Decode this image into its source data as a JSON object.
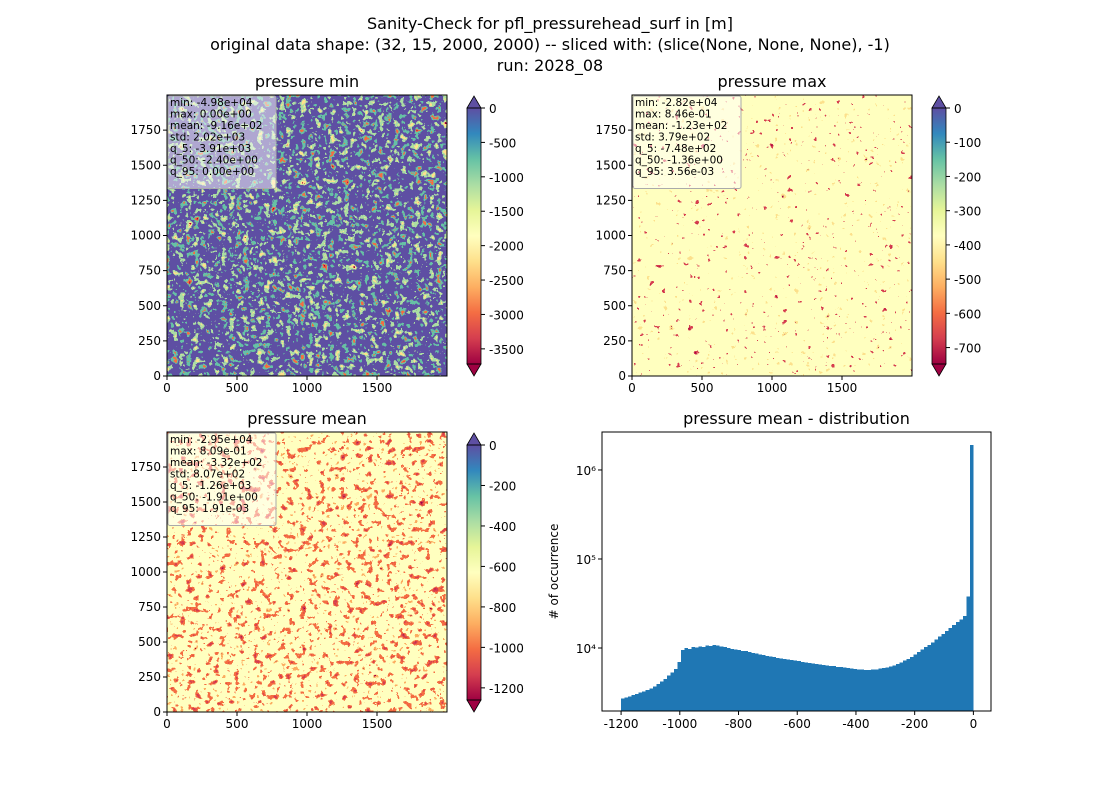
{
  "suptitle": [
    "Sanity-Check for pfl_pressurehead_surf in [m]",
    "original data shape: (32, 15, 2000, 2000) -- sliced with: (slice(None, None, None), -1)",
    "run: 2028_08"
  ],
  "chart_data": [
    {
      "type": "heatmap",
      "title": "pressure min",
      "annotations": [
        "min: -4.98e+04",
        "max: 0.00e+00",
        "mean: -9.16e+02",
        "std: 2.02e+03",
        "q_5: -3.91e+03",
        "q_50: -2.40e+00",
        "q_95: 0.00e+00"
      ],
      "xlim": [
        0,
        2000
      ],
      "ylim": [
        0,
        2000
      ],
      "xticks": [
        0,
        500,
        1000,
        1500
      ],
      "yticks": [
        0,
        250,
        500,
        750,
        1000,
        1250,
        1500,
        1750
      ],
      "colorbar_lim": [
        -3720,
        0
      ],
      "colorbar_ticks": [
        0,
        -500,
        -1000,
        -1500,
        -2000,
        -2500,
        -3000,
        -3500
      ],
      "colormap": [
        "#9e0142",
        "#d53e4f",
        "#f46d43",
        "#fdae61",
        "#fee08b",
        "#ffffbf",
        "#e6f598",
        "#abdda4",
        "#66c2a5",
        "#3288bd",
        "#5e4fa2"
      ]
    },
    {
      "type": "heatmap",
      "title": "pressure max",
      "annotations": [
        "min: -2.82e+04",
        "max: 8.46e-01",
        "mean: -1.23e+02",
        "std: 3.79e+02",
        "q_5: -7.48e+02",
        "q_50: -1.36e+00",
        "q_95: 3.56e-03"
      ],
      "xlim": [
        0,
        2000
      ],
      "ylim": [
        0,
        2000
      ],
      "xticks": [
        0,
        500,
        1000,
        1500
      ],
      "yticks": [
        0,
        250,
        500,
        750,
        1000,
        1250,
        1500,
        1750
      ],
      "colorbar_lim": [
        -748,
        0
      ],
      "colorbar_ticks": [
        0,
        -100,
        -200,
        -300,
        -400,
        -500,
        -600,
        -700
      ],
      "colormap": [
        "#9e0142",
        "#d53e4f",
        "#f46d43",
        "#fdae61",
        "#fee08b",
        "#ffffbf",
        "#e6f598",
        "#abdda4",
        "#66c2a5",
        "#3288bd",
        "#5e4fa2"
      ]
    },
    {
      "type": "heatmap",
      "title": "pressure mean",
      "annotations": [
        "min: -2.95e+04",
        "max: 8.09e-01",
        "mean: -3.32e+02",
        "std: 8.07e+02",
        "q_5: -1.26e+03",
        "q_50: -1.91e+00",
        "q_95: 1.91e-03"
      ],
      "xlim": [
        0,
        2000
      ],
      "ylim": [
        0,
        2000
      ],
      "xticks": [
        0,
        500,
        1000,
        1500
      ],
      "yticks": [
        0,
        250,
        500,
        750,
        1000,
        1250,
        1500,
        1750
      ],
      "colorbar_lim": [
        -1260,
        0
      ],
      "colorbar_ticks": [
        0,
        -200,
        -400,
        -600,
        -800,
        -1000,
        -1200
      ],
      "colormap": [
        "#9e0142",
        "#d53e4f",
        "#f46d43",
        "#fdae61",
        "#fee08b",
        "#ffffbf",
        "#e6f598",
        "#abdda4",
        "#66c2a5",
        "#3288bd",
        "#5e4fa2"
      ]
    },
    {
      "type": "histogram",
      "title": "pressure mean - distribution",
      "ylabel": "# of occurrence",
      "color": "#1f77b4",
      "yscale": "log",
      "xlim": [
        -1265,
        60
      ],
      "ylim": [
        1960,
        2670000
      ],
      "xticks": [
        -1200,
        -1000,
        -800,
        -600,
        -400,
        -200,
        0
      ],
      "yticks": [
        {
          "value": 10000,
          "label": "10⁴"
        },
        {
          "value": 100000,
          "label": "10⁵"
        },
        {
          "value": 1000000,
          "label": "10⁶"
        }
      ],
      "bins": [
        -1200,
        -1188,
        -1176,
        -1164,
        -1152,
        -1140,
        -1128,
        -1116,
        -1104,
        -1092,
        -1080,
        -1068,
        -1056,
        -1044,
        -1032,
        -1020,
        -1008,
        -996,
        -984,
        -972,
        -960,
        -948,
        -936,
        -924,
        -912,
        -900,
        -888,
        -876,
        -864,
        -852,
        -840,
        -828,
        -816,
        -804,
        -792,
        -780,
        -768,
        -756,
        -744,
        -732,
        -720,
        -708,
        -696,
        -684,
        -672,
        -660,
        -648,
        -636,
        -624,
        -612,
        -600,
        -588,
        -576,
        -564,
        -552,
        -540,
        -528,
        -516,
        -504,
        -492,
        -480,
        -468,
        -456,
        -444,
        -432,
        -420,
        -408,
        -396,
        -384,
        -372,
        -360,
        -348,
        -336,
        -324,
        -312,
        -300,
        -288,
        -276,
        -264,
        -252,
        -240,
        -228,
        -216,
        -204,
        -192,
        -180,
        -168,
        -156,
        -144,
        -132,
        -120,
        -108,
        -96,
        -84,
        -72,
        -60,
        -48,
        -36,
        -24,
        -12,
        0
      ],
      "values": [
        2700,
        2780,
        2860,
        2950,
        3050,
        3150,
        3260,
        3380,
        3500,
        3700,
        3950,
        4200,
        4500,
        4900,
        5300,
        5800,
        7000,
        9500,
        10000,
        9800,
        10200,
        10100,
        10400,
        10300,
        10600,
        10500,
        10800,
        10600,
        10400,
        10300,
        10000,
        9800,
        9600,
        9500,
        9300,
        9200,
        9000,
        8800,
        8700,
        8500,
        8300,
        8100,
        8000,
        7900,
        7700,
        7600,
        7500,
        7400,
        7300,
        7200,
        7100,
        7000,
        6900,
        6800,
        6700,
        6650,
        6550,
        6450,
        6400,
        6300,
        6250,
        6150,
        6100,
        6000,
        5950,
        5900,
        5800,
        5750,
        5700,
        5650,
        5650,
        5700,
        5750,
        5850,
        5950,
        6050,
        6200,
        6400,
        6600,
        6900,
        7200,
        7500,
        7900,
        8400,
        9000,
        9600,
        10200,
        10800,
        11600,
        12500,
        13400,
        14400,
        15600,
        16800,
        18200,
        19500,
        21000,
        23000,
        38000,
        1900000
      ]
    }
  ]
}
